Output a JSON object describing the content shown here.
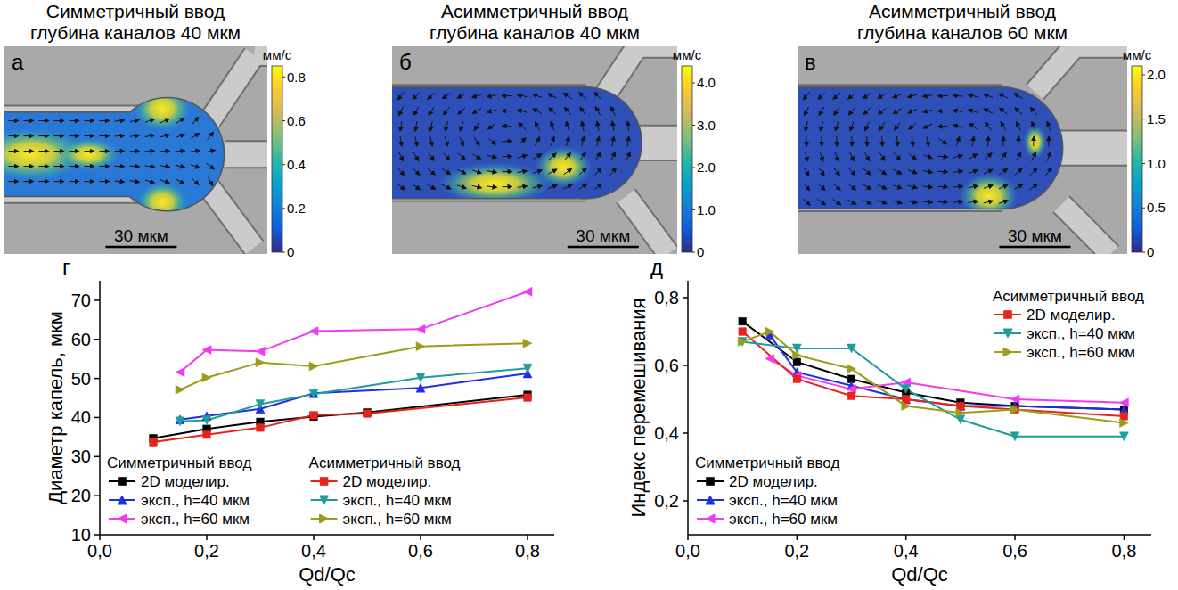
{
  "panels": [
    {
      "letter": "а",
      "title_lines": [
        "Симметричный ввод",
        "глубина каналов 40 мкм"
      ],
      "scale_bar": "30 мкм",
      "colorbar": {
        "label": "мм/с",
        "range": [
          0,
          0.85
        ],
        "ticks": [
          0,
          0.2,
          0.4,
          0.6,
          0.8
        ]
      }
    },
    {
      "letter": "б",
      "title_lines": [
        "Асимметричный ввод",
        "глубина каналов 40 мкм"
      ],
      "scale_bar": "30 мкм",
      "colorbar": {
        "label": "мм/с",
        "range": [
          0,
          4.4
        ],
        "ticks": [
          0,
          {
            "value": 1,
            "label": "1.0"
          },
          {
            "value": 2,
            "label": "2.0"
          },
          {
            "value": 3,
            "label": "3.0"
          },
          {
            "value": 4,
            "label": "4.0"
          }
        ]
      }
    },
    {
      "letter": "в",
      "title_lines": [
        "Асимметричный ввод",
        "глубина каналов 60 мкм"
      ],
      "scale_bar": "30 мкм",
      "colorbar": {
        "label": "мм/с",
        "range": [
          0,
          2.1
        ],
        "ticks": [
          0,
          0.5,
          {
            "value": 1,
            "label": "1.0"
          },
          1.5,
          {
            "value": 2,
            "label": "2.0"
          }
        ]
      }
    }
  ],
  "chart_data": [
    {
      "type": "line",
      "letter": "г",
      "x_label": "Qd/Qc",
      "y_label": "Диаметр капель, мкм",
      "grid": false,
      "xlim": [
        0,
        0.85
      ],
      "ylim": [
        10,
        75
      ],
      "xticks": [
        {
          "value": 0,
          "label": "0,0"
        },
        {
          "value": 0.2,
          "label": "0,2"
        },
        {
          "value": 0.4,
          "label": "0,4"
        },
        {
          "value": 0.6,
          "label": "0,6"
        },
        {
          "value": 0.8,
          "label": "0,8"
        }
      ],
      "yticks": [
        10,
        20,
        30,
        40,
        50,
        60,
        70
      ],
      "legend_groups": [
        {
          "title": "Симметричный ввод",
          "legend": "lower-left"
        },
        {
          "title": "Асимметричный ввод",
          "legend": "lower-center"
        }
      ],
      "series": [
        {
          "name": "2D моделир.",
          "group": "Симметричный ввод",
          "color": "#000000",
          "marker": "square",
          "line_style": "solid",
          "x": [
            0.1,
            0.2,
            0.3,
            0.4,
            0.5,
            0.8
          ],
          "values": [
            34.7,
            37.1,
            38.9,
            40.2,
            41.3,
            45.8
          ]
        },
        {
          "name": "эксп., h=40 мкм",
          "group": "Симметричный ввод",
          "color": "#1f2fe0",
          "marker": "triangle-up",
          "line_style": "solid",
          "x": [
            0.15,
            0.2,
            0.3,
            0.4,
            0.6,
            0.8
          ],
          "values": [
            39.5,
            40.4,
            42.2,
            46.2,
            47.6,
            51.3
          ]
        },
        {
          "name": "эксп., h=60 мкм",
          "group": "Симметричный ввод",
          "color": "#f03cf0",
          "marker": "triangle-left",
          "line_style": "solid",
          "x": [
            0.15,
            0.2,
            0.3,
            0.4,
            0.6,
            0.8
          ],
          "values": [
            51.6,
            57.3,
            56.9,
            62.1,
            62.6,
            72.2
          ]
        },
        {
          "name": "2D моделир.",
          "group": "Асимметричный ввод",
          "color": "#e8231c",
          "marker": "square",
          "line_style": "solid",
          "x": [
            0.1,
            0.2,
            0.3,
            0.4,
            0.5,
            0.8
          ],
          "values": [
            33.7,
            35.6,
            37.4,
            40.6,
            41.0,
            45.1
          ]
        },
        {
          "name": "эксп., h=40 мкм",
          "group": "Асимметричный ввод",
          "color": "#1f9c9c",
          "marker": "triangle-down",
          "line_style": "solid",
          "x": [
            0.15,
            0.2,
            0.3,
            0.4,
            0.6,
            0.8
          ],
          "values": [
            39.0,
            39.3,
            43.4,
            46.0,
            50.2,
            52.6
          ]
        },
        {
          "name": "эксп., h=60 мкм",
          "group": "Асимметричный ввод",
          "color": "#9c9c1a",
          "marker": "triangle-right",
          "line_style": "solid",
          "x": [
            0.15,
            0.2,
            0.3,
            0.4,
            0.6,
            0.8
          ],
          "values": [
            47.1,
            50.2,
            54.1,
            53.1,
            58.2,
            59.0
          ]
        }
      ]
    },
    {
      "type": "line",
      "letter": "д",
      "x_label": "Qd/Qc",
      "y_label": "Индекс перемешивания",
      "grid": false,
      "xlim": [
        0,
        0.85
      ],
      "ylim": [
        0.1,
        0.85
      ],
      "xticks": [
        {
          "value": 0,
          "label": "0,0"
        },
        {
          "value": 0.2,
          "label": "0,2"
        },
        {
          "value": 0.4,
          "label": "0,4"
        },
        {
          "value": 0.6,
          "label": "0,6"
        },
        {
          "value": 0.8,
          "label": "0,8"
        }
      ],
      "yticks": [
        {
          "value": 0.2,
          "label": "0,2"
        },
        {
          "value": 0.4,
          "label": "0,4"
        },
        {
          "value": 0.6,
          "label": "0,6"
        },
        {
          "value": 0.8,
          "label": "0,8"
        }
      ],
      "legend_groups": [
        {
          "title": "Асимметричный ввод",
          "legend": "upper-right"
        },
        {
          "title": "Симметричный ввод",
          "legend": "lower-left"
        }
      ],
      "series": [
        {
          "name": "2D моделир.",
          "group": "Симметричный ввод",
          "color": "#000000",
          "marker": "square",
          "line_style": "solid",
          "x": [
            0.1,
            0.2,
            0.3,
            0.4,
            0.5,
            0.6,
            0.8
          ],
          "values": [
            0.73,
            0.61,
            0.56,
            0.52,
            0.49,
            0.48,
            0.47
          ]
        },
        {
          "name": "эксп., h=40 мкм",
          "group": "Симметричный ввод",
          "color": "#1f2fe0",
          "marker": "triangle-up",
          "line_style": "solid",
          "x": [
            0.15,
            0.2,
            0.3,
            0.4,
            0.5,
            0.6,
            0.8
          ],
          "values": [
            0.69,
            0.58,
            0.54,
            0.5,
            0.48,
            0.48,
            0.47
          ]
        },
        {
          "name": "эксп., h=60 мкм",
          "group": "Симметричный ввод",
          "color": "#f03cf0",
          "marker": "triangle-left",
          "line_style": "solid",
          "x": [
            0.15,
            0.2,
            0.3,
            0.4,
            0.6,
            0.8
          ],
          "values": [
            0.62,
            0.57,
            0.53,
            0.55,
            0.5,
            0.49
          ]
        },
        {
          "name": "2D моделир.",
          "group": "Асимметричный ввод",
          "color": "#e8231c",
          "marker": "square",
          "line_style": "solid",
          "x": [
            0.1,
            0.2,
            0.3,
            0.4,
            0.5,
            0.6,
            0.8
          ],
          "values": [
            0.7,
            0.56,
            0.51,
            0.5,
            0.48,
            0.47,
            0.45
          ]
        },
        {
          "name": "эксп., h=40 мкм",
          "group": "Асимметричный ввод",
          "color": "#1f9c9c",
          "marker": "triangle-down",
          "line_style": "solid",
          "x": [
            0.1,
            0.2,
            0.3,
            0.4,
            0.5,
            0.6,
            0.8
          ],
          "values": [
            0.67,
            0.65,
            0.65,
            0.53,
            0.44,
            0.39,
            0.39
          ]
        },
        {
          "name": "эксп., h=60 мкм",
          "group": "Асимметричный ввод",
          "color": "#9c9c1a",
          "marker": "triangle-right",
          "line_style": "solid",
          "x": [
            0.1,
            0.15,
            0.2,
            0.3,
            0.4,
            0.5,
            0.6,
            0.8
          ],
          "values": [
            0.67,
            0.7,
            0.63,
            0.59,
            0.48,
            0.46,
            0.47,
            0.43
          ]
        }
      ]
    }
  ]
}
